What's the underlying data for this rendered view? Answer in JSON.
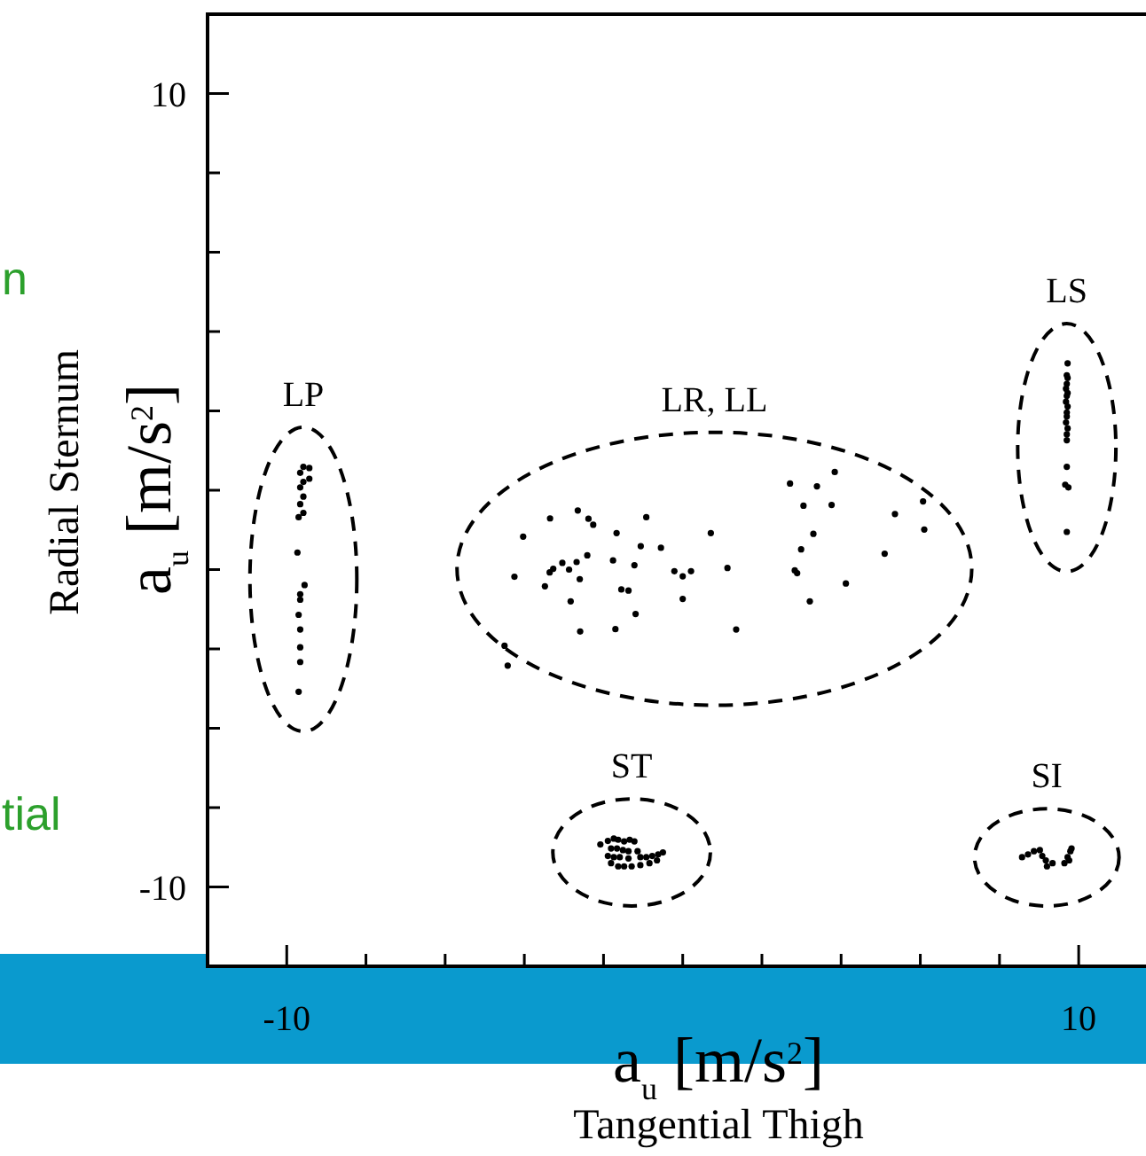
{
  "chart_data": {
    "type": "scatter",
    "xlabel": "a$_{u}$ [m/s$^{2}$]",
    "ylabel": "a$_{u}$ [m/s$^{2}$]",
    "xlim": [
      -12,
      11.7
    ],
    "ylim": [
      -12,
      12
    ],
    "xticks": [
      {
        "value": -10,
        "label": "-10"
      },
      {
        "value": -8,
        "label": null
      },
      {
        "value": -6,
        "label": null
      },
      {
        "value": -4,
        "label": null
      },
      {
        "value": -2,
        "label": null
      },
      {
        "value": 0,
        "label": null
      },
      {
        "value": 2,
        "label": null
      },
      {
        "value": 4,
        "label": null
      },
      {
        "value": 6,
        "label": null
      },
      {
        "value": 8,
        "label": null
      },
      {
        "value": 10,
        "label": "10"
      }
    ],
    "yticks": [
      {
        "value": -10,
        "label": "-10"
      },
      {
        "value": -8,
        "label": null
      },
      {
        "value": -6,
        "label": null
      },
      {
        "value": -4,
        "label": null
      },
      {
        "value": -2,
        "label": null
      },
      {
        "value": 0,
        "label": null
      },
      {
        "value": 2,
        "label": null
      },
      {
        "value": 4,
        "label": null
      },
      {
        "value": 6,
        "label": null
      },
      {
        "value": 8,
        "label": null
      },
      {
        "value": 10,
        "label": "10"
      }
    ],
    "marker": "circle",
    "series": [
      {
        "color": "#000000",
        "x": [
          -9.58,
          -9.43,
          -9.66,
          -9.43,
          -9.58,
          -9.66,
          -9.58,
          -9.66,
          -9.58,
          -9.7,
          -9.73,
          -9.55,
          -9.66,
          -9.66,
          -9.7,
          -9.66,
          -9.66,
          -9.66,
          -9.7
        ],
        "values": [
          0.59,
          0.56,
          0.44,
          0.29,
          0.21,
          0.07,
          -0.16,
          -0.35,
          -0.57,
          -0.68,
          -1.57,
          -2.39,
          -2.62,
          -2.76,
          -3.14,
          -3.51,
          -3.96,
          -4.33,
          -5.08
        ]
      },
      {
        "color": "#000000",
        "x": [
          -3.35,
          -2.65,
          -2.38,
          -2.26,
          -0.92,
          -4.03,
          -1.67,
          0.71,
          -1.06,
          -0.55,
          -2.41,
          -1.76,
          -3.04,
          -2.68,
          -1.22,
          -3.27,
          -3.36,
          -2.87,
          1.13,
          -0.21,
          0.21,
          0,
          -4.25,
          -2.6,
          -3.48,
          -1.55,
          -1.37,
          -2.83,
          0,
          -1.19,
          -2.59,
          -1.7,
          1.35,
          -4.5,
          -4.42,
          2.71,
          3.39,
          3.84,
          3.05,
          3.76,
          6.07,
          5.36,
          6.1,
          3.3,
          2.99,
          5.1,
          2.83,
          2.89,
          4.12,
          3.21
        ],
        "values": [
          -0.71,
          -0.51,
          -0.72,
          -0.87,
          -0.68,
          -1.17,
          -1.08,
          -1.08,
          -1.41,
          -1.45,
          -1.64,
          -1.77,
          -1.83,
          -1.81,
          -1.89,
          -1.98,
          -2.07,
          -2,
          -1.96,
          -2.04,
          -2.04,
          -2.17,
          -2.18,
          -2.24,
          -2.42,
          -2.5,
          -2.53,
          -2.8,
          -2.74,
          -3.12,
          -3.56,
          -3.5,
          -3.51,
          -3.92,
          -4.42,
          0.17,
          0.1,
          0.46,
          -0.39,
          -0.37,
          -0.28,
          -0.6,
          -0.99,
          -1.1,
          -1.49,
          -1.6,
          -2.02,
          -2.09,
          -2.35,
          -2.8
        ]
      },
      {
        "color": "#000000",
        "x": [
          9.72,
          9.7,
          9.72,
          9.7,
          9.68,
          9.72,
          9.7,
          9.68,
          9.72,
          9.7,
          9.7,
          9.68,
          9.72,
          9.7,
          9.7,
          9.7,
          9.66,
          9.74,
          9.7
        ],
        "values": [
          3.2,
          2.9,
          2.83,
          2.68,
          2.56,
          2.45,
          2.38,
          2.23,
          2.11,
          1.96,
          1.86,
          1.71,
          1.56,
          1.41,
          1.26,
          0.59,
          0.14,
          0.07,
          -1.05
        ]
      },
      {
        "color": "#000000",
        "x": [
          -2.08,
          -1.89,
          -1.74,
          -1.63,
          -1.48,
          -1.34,
          -1.22,
          -1.81,
          -1.66,
          -1.51,
          -1.37,
          -1.14,
          -1.89,
          -1.74,
          -1.59,
          -1.37,
          -1.07,
          -0.92,
          -0.77,
          -0.62,
          -0.5,
          -1.81,
          -1.63,
          -1.48,
          -1.29,
          -1.07,
          -0.84,
          -0.65
        ],
        "values": [
          -8.93,
          -8.84,
          -8.78,
          -8.81,
          -8.85,
          -8.81,
          -8.85,
          -9.03,
          -9.03,
          -9.07,
          -9.1,
          -9.1,
          -9.22,
          -9.25,
          -9.25,
          -9.28,
          -9.25,
          -9.25,
          -9.22,
          -9.18,
          -9.13,
          -9.4,
          -9.48,
          -9.48,
          -9.48,
          -9.45,
          -9.4,
          -9.33
        ]
      },
      {
        "color": "#000000",
        "x": [
          8.57,
          8.72,
          8.87,
          9.02,
          9.08,
          9.17,
          9.27,
          9.34,
          9.2,
          9.64,
          9.72,
          9.79,
          9.82,
          9.76
        ],
        "values": [
          -9.25,
          -9.18,
          -9.1,
          -9.07,
          -9.22,
          -9.33,
          null,
          -9.4,
          -9.48,
          -9.4,
          -9.25,
          -9.1,
          -9.03,
          -9.33
        ]
      }
    ],
    "annotations": [
      "Radial Sternum",
      "Tangential Thigh",
      "n",
      "tial",
      "LP",
      "LR, LL",
      "LS",
      "ST",
      "SI"
    ]
  }
}
